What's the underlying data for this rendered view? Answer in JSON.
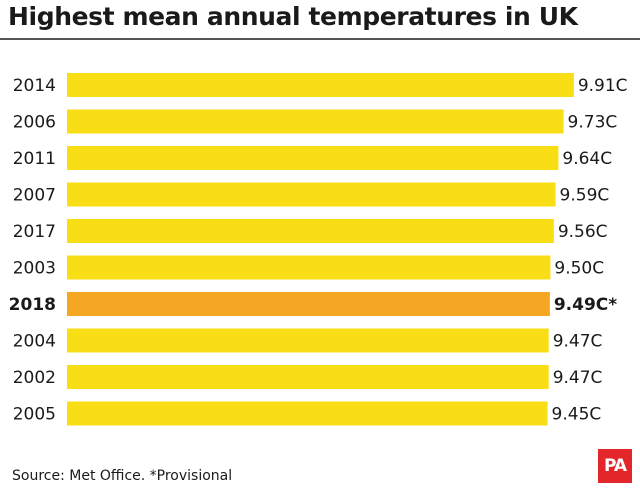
{
  "title": "Highest mean annual temperatures in UK",
  "source": "Source: Met Office. *Provisional",
  "logo": "PA",
  "colors": {
    "bar": "#f9dd15",
    "highlight": "#f5a623",
    "rule": "#555555",
    "logo_bg": "#e3262a"
  },
  "chart_data": {
    "type": "bar",
    "orientation": "horizontal",
    "title": "Highest mean annual temperatures in UK",
    "categories": [
      "2014",
      "2006",
      "2011",
      "2007",
      "2017",
      "2003",
      "2018",
      "2004",
      "2002",
      "2005"
    ],
    "values": [
      9.91,
      9.73,
      9.64,
      9.59,
      9.56,
      9.5,
      9.49,
      9.47,
      9.47,
      9.45
    ],
    "value_labels": [
      "9.91C",
      "9.73C",
      "9.64C",
      "9.59C",
      "9.56C",
      "9.50C",
      "9.49C*",
      "9.47C",
      "9.47C",
      "9.45C"
    ],
    "highlight": "2018",
    "xlabel": "",
    "ylabel": "",
    "grid": false,
    "legend": "none"
  }
}
